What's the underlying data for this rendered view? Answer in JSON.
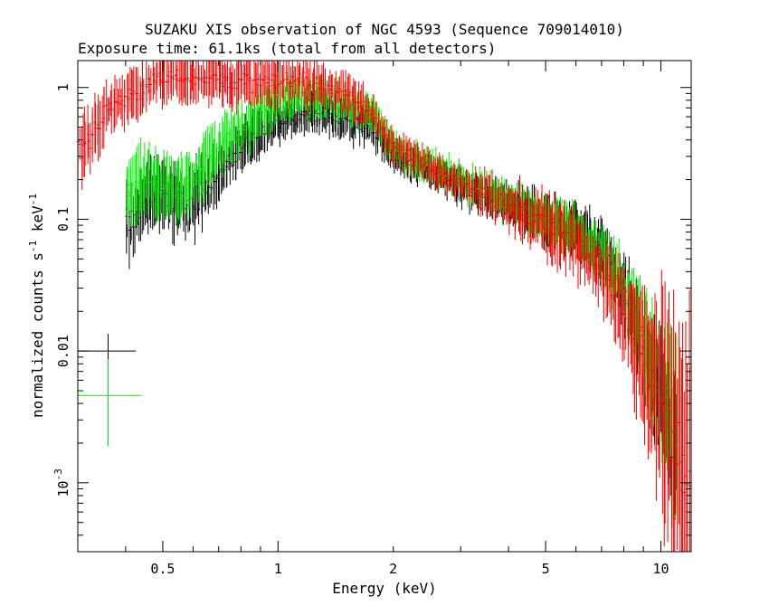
{
  "chart_data": {
    "type": "scatter",
    "title": "SUZAKU XIS observation of NGC 4593 (Sequence 709014010)",
    "subtitle": "Exposure time: 61.1ks (total from all detectors)",
    "xlabel": "Energy (keV)",
    "ylabel": "normalized counts s^-1 keV^-1",
    "xscale": "log",
    "yscale": "log",
    "xlim": [
      0.3,
      12.0
    ],
    "ylim": [
      0.0003,
      1.6
    ],
    "x_ticks": [
      {
        "value": 0.5,
        "label": "0.5"
      },
      {
        "value": 1,
        "label": "1"
      },
      {
        "value": 2,
        "label": "2"
      },
      {
        "value": 5,
        "label": "5"
      },
      {
        "value": 10,
        "label": "10"
      }
    ],
    "y_ticks": [
      {
        "value": 1,
        "label": "1"
      },
      {
        "value": 0.1,
        "label": "0.1"
      },
      {
        "value": 0.01,
        "label": "0.01"
      },
      {
        "value": 0.001,
        "label": "10^-3"
      }
    ],
    "grid": false,
    "legend": "none",
    "series": [
      {
        "color": "#ff0000",
        "x": [
          0.3,
          0.33,
          0.36,
          0.4,
          0.45,
          0.5,
          0.6,
          0.7,
          0.8,
          0.9,
          1.0,
          1.2,
          1.4,
          1.6,
          1.8,
          2.0,
          2.5,
          3.0,
          4.0,
          5.0,
          6.0,
          7.0,
          8.0,
          9.0,
          10.0,
          11.0,
          12.0
        ],
        "y": [
          0.35,
          0.45,
          0.7,
          0.85,
          1.0,
          1.2,
          1.2,
          1.15,
          1.1,
          1.1,
          1.1,
          1.1,
          1.0,
          0.8,
          0.6,
          0.35,
          0.25,
          0.19,
          0.13,
          0.09,
          0.065,
          0.04,
          0.018,
          0.008,
          0.004,
          0.0015,
          0.0008
        ],
        "yerr": [
          0.2,
          0.2,
          0.15,
          0.15,
          0.15,
          0.15,
          0.15,
          0.15,
          0.15,
          0.15,
          0.15,
          0.15,
          0.12,
          0.12,
          0.1,
          0.1,
          0.1,
          0.1,
          0.15,
          0.2,
          0.2,
          0.2,
          0.3,
          0.45,
          0.6,
          0.9,
          1.0
        ]
      },
      {
        "color": "#000000",
        "x": [
          0.4,
          0.45,
          0.5,
          0.55,
          0.6,
          0.7,
          0.8,
          0.9,
          1.0,
          1.2,
          1.4,
          1.6,
          1.8,
          2.0,
          2.5,
          3.0,
          4.0,
          5.0,
          6.0,
          7.0,
          8.0,
          9.0,
          10.0,
          11.0
        ],
        "y": [
          0.09,
          0.14,
          0.16,
          0.13,
          0.14,
          0.22,
          0.35,
          0.45,
          0.55,
          0.65,
          0.6,
          0.55,
          0.45,
          0.3,
          0.23,
          0.18,
          0.13,
          0.1,
          0.085,
          0.06,
          0.03,
          0.01,
          0.004,
          0.002
        ],
        "yerr": [
          0.25,
          0.2,
          0.2,
          0.2,
          0.2,
          0.18,
          0.15,
          0.15,
          0.12,
          0.12,
          0.12,
          0.12,
          0.1,
          0.1,
          0.1,
          0.1,
          0.12,
          0.15,
          0.15,
          0.15,
          0.2,
          0.3,
          0.4,
          0.5
        ]
      },
      {
        "color": "#00ee00",
        "x": [
          0.4,
          0.45,
          0.5,
          0.55,
          0.6,
          0.7,
          0.8,
          0.9,
          1.0,
          1.2,
          1.4,
          1.6,
          1.8,
          2.0,
          2.5,
          3.0,
          4.0,
          5.0,
          6.0,
          7.0,
          8.0,
          9.0,
          10.0,
          11.0
        ],
        "y": [
          0.15,
          0.2,
          0.18,
          0.15,
          0.2,
          0.35,
          0.5,
          0.65,
          0.8,
          0.85,
          0.8,
          0.7,
          0.6,
          0.35,
          0.25,
          0.2,
          0.14,
          0.1,
          0.08,
          0.055,
          0.03,
          0.012,
          0.005,
          0.003
        ],
        "yerr": [
          0.25,
          0.2,
          0.2,
          0.2,
          0.2,
          0.18,
          0.15,
          0.15,
          0.12,
          0.12,
          0.12,
          0.12,
          0.1,
          0.1,
          0.1,
          0.1,
          0.12,
          0.15,
          0.15,
          0.15,
          0.2,
          0.3,
          0.4,
          0.5
        ]
      }
    ],
    "error_bar_markers": [
      {
        "color": "#000000",
        "x": 0.36,
        "y": 0.01,
        "x_lo": 0.3,
        "x_hi": 0.425,
        "y_lo": 0.0075,
        "y_hi": 0.0135
      },
      {
        "color": "#00ee00",
        "x": 0.36,
        "y": 0.0046,
        "x_lo": 0.3,
        "x_hi": 0.44,
        "y_lo": 0.0019,
        "y_hi": 0.0087
      }
    ]
  }
}
